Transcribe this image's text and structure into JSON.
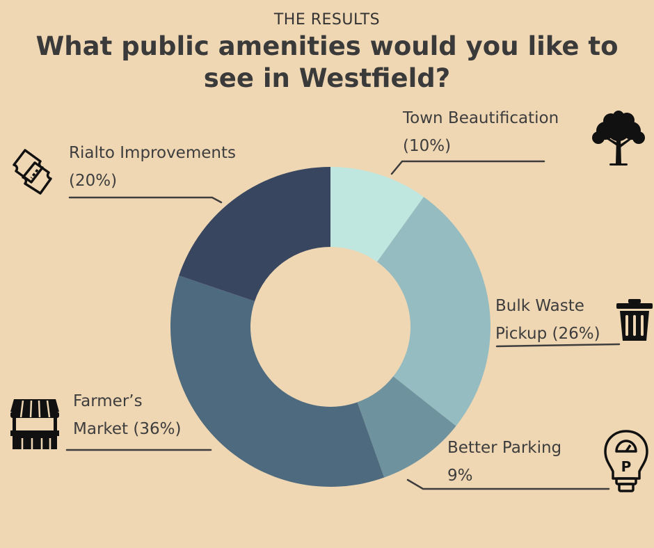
{
  "kicker": "THE RESULTS",
  "title": "What public amenities would you like to see in Westfield?",
  "chart_data": {
    "type": "pie",
    "categories": [
      "Town Beautification",
      "Bulk Waste Pickup",
      "Better Parking",
      "Farmer’s Market",
      "Rialto Improvements"
    ],
    "values": [
      10,
      26,
      9,
      36,
      20
    ],
    "label_lines": [
      [
        "Town Beautification",
        "(10%)"
      ],
      [
        "Bulk Waste",
        "Pickup (26%)"
      ],
      [
        "Better Parking",
        "9%"
      ],
      [
        "Farmer’s",
        "Market (36%)"
      ],
      [
        "Rialto Improvements",
        "(20%)"
      ]
    ],
    "donut": true,
    "start_angle_deg": 0,
    "direction": "clockwise",
    "legend": "none",
    "colors": [
      "#c0e6e0",
      "#95bcc0",
      "#6e939f",
      "#4e6a7e",
      "#384660"
    ]
  },
  "icons": {
    "town_beautification": "tree-icon",
    "bulk_waste": "trash-can-icon",
    "better_parking": "parking-meter-icon",
    "farmers_market": "market-stall-icon",
    "rialto": "tickets-icon"
  },
  "colors": {
    "background": "#f0d7b4",
    "text": "#3a3a3a",
    "icon": "#111111"
  }
}
